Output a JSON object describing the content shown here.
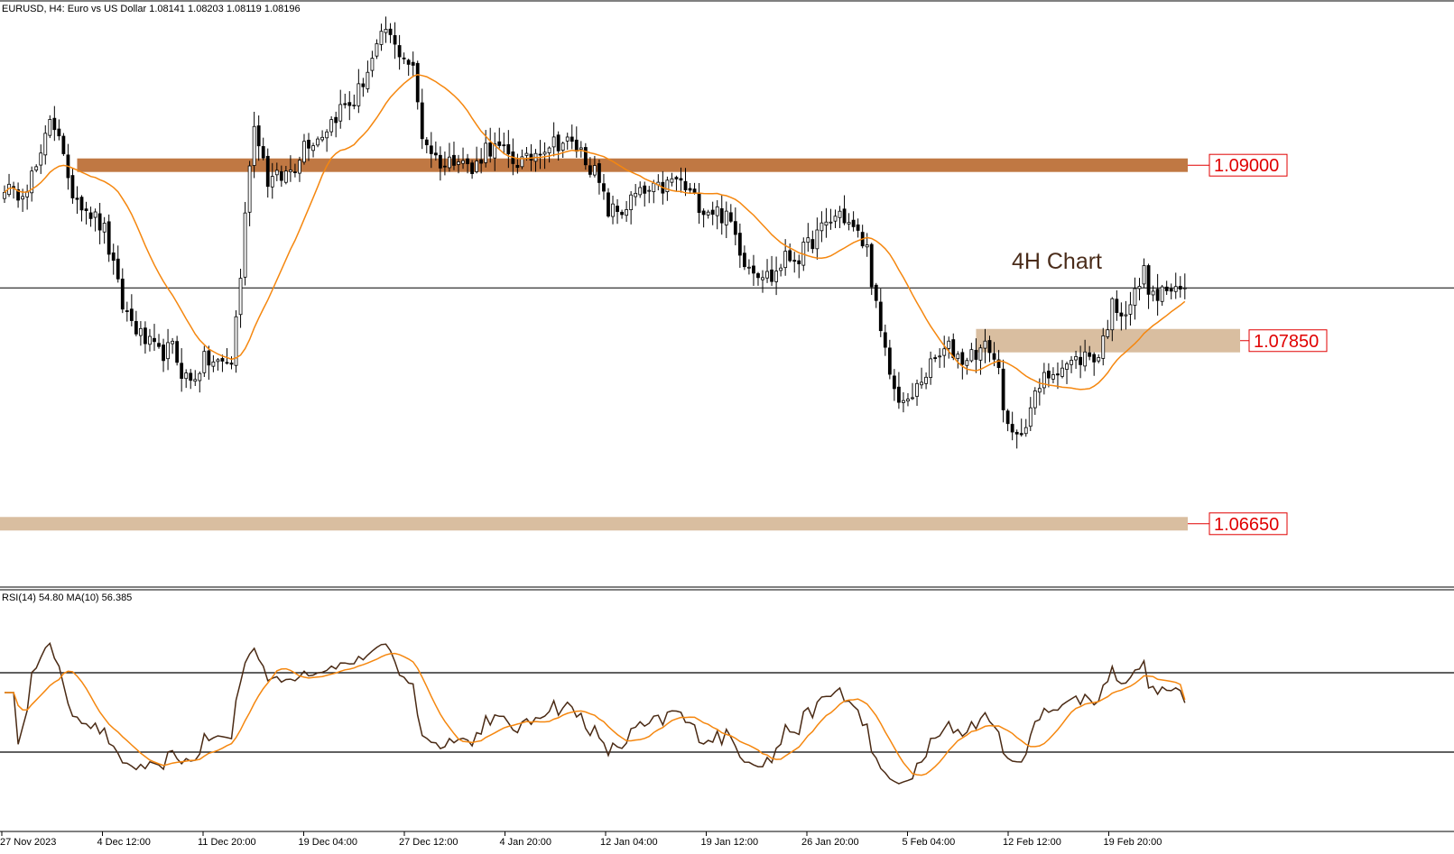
{
  "window": {
    "symbol_line": "EURUSD, H4:  Euro vs US Dollar  1.08141 1.08203 1.08119 1.08196",
    "rsi_line": "RSI(14) 54.80 MA(10) 56.385"
  },
  "annotation": "4H Chart",
  "colors": {
    "background": "#ffffff",
    "candle": "#000000",
    "ma_line": "#f5870f",
    "rsi_line": "#4a2a14",
    "level_dark": "#c07843",
    "level_light": "#d9bea0",
    "label_red": "#e00000"
  },
  "chart_data": [
    {
      "type": "candlestick",
      "symbol": "EURUSD",
      "timeframe": "H4",
      "title": "Euro vs US Dollar",
      "last_ohlc": {
        "open": 1.08141,
        "high": 1.08203,
        "low": 1.08119,
        "close": 1.08196
      },
      "ylim": [
        1.063,
        1.1
      ],
      "x_tick_labels": [
        "27 Nov 2023",
        "4 Dec 12:00",
        "11 Dec 20:00",
        "19 Dec 04:00",
        "27 Dec 12:00",
        "4 Jan 20:00",
        "12 Jan 04:00",
        "19 Jan 12:00",
        "26 Jan 20:00",
        "5 Feb 04:00",
        "12 Feb 12:00",
        "19 Feb 20:00"
      ],
      "price_path": [
        [
          0,
          1.0887
        ],
        [
          2,
          1.088
        ],
        [
          5,
          1.0888
        ],
        [
          8,
          1.0903
        ],
        [
          10,
          1.0932
        ],
        [
          12,
          1.0922
        ],
        [
          14,
          1.0886
        ],
        [
          18,
          1.0873
        ],
        [
          22,
          1.0857
        ],
        [
          26,
          1.0808
        ],
        [
          30,
          1.0788
        ],
        [
          34,
          1.0776
        ],
        [
          37,
          1.078
        ],
        [
          39,
          1.0765
        ],
        [
          41,
          1.0758
        ],
        [
          44,
          1.0772
        ],
        [
          47,
          1.077
        ],
        [
          50,
          1.0771
        ],
        [
          52,
          1.0828
        ],
        [
          54,
          1.0904
        ],
        [
          55,
          1.0925
        ],
        [
          56,
          1.0918
        ],
        [
          58,
          1.089
        ],
        [
          61,
          1.0892
        ],
        [
          64,
          1.09
        ],
        [
          66,
          1.0915
        ],
        [
          69,
          1.0918
        ],
        [
          71,
          1.0925
        ],
        [
          74,
          1.0937
        ],
        [
          77,
          1.0942
        ],
        [
          80,
          1.0962
        ],
        [
          82,
          1.0975
        ],
        [
          84,
          1.0989
        ],
        [
          86,
          1.0977
        ],
        [
          88,
          1.0972
        ],
        [
          90,
          1.0962
        ],
        [
          92,
          1.092
        ],
        [
          95,
          1.0905
        ],
        [
          97,
          1.09
        ],
        [
          100,
          1.0908
        ],
        [
          103,
          1.0895
        ],
        [
          106,
          1.0912
        ],
        [
          109,
          1.091
        ],
        [
          112,
          1.0903
        ],
        [
          115,
          1.0902
        ],
        [
          118,
          1.0912
        ],
        [
          121,
          1.0915
        ],
        [
          124,
          1.0915
        ],
        [
          127,
          1.0909
        ],
        [
          130,
          1.0895
        ],
        [
          133,
          1.087
        ],
        [
          136,
          1.087
        ],
        [
          139,
          1.088
        ],
        [
          142,
          1.0882
        ],
        [
          145,
          1.0885
        ],
        [
          148,
          1.0891
        ],
        [
          151,
          1.0881
        ],
        [
          154,
          1.0872
        ],
        [
          157,
          1.087
        ],
        [
          160,
          1.0862
        ],
        [
          163,
          1.0838
        ],
        [
          166,
          1.0831
        ],
        [
          169,
          1.0826
        ],
        [
          172,
          1.0839
        ],
        [
          175,
          1.084
        ],
        [
          178,
          1.0851
        ],
        [
          181,
          1.0861
        ],
        [
          184,
          1.0869
        ],
        [
          187,
          1.0858
        ],
        [
          190,
          1.0845
        ],
        [
          193,
          1.0788
        ],
        [
          196,
          1.0752
        ],
        [
          199,
          1.0742
        ],
        [
          202,
          1.076
        ],
        [
          205,
          1.0772
        ],
        [
          208,
          1.078
        ],
        [
          211,
          1.0773
        ],
        [
          214,
          1.0778
        ],
        [
          217,
          1.0781
        ],
        [
          219,
          1.0765
        ],
        [
          221,
          1.0725
        ],
        [
          223,
          1.072
        ],
        [
          226,
          1.0741
        ],
        [
          229,
          1.076
        ],
        [
          232,
          1.0768
        ],
        [
          235,
          1.077
        ],
        [
          238,
          1.0775
        ],
        [
          241,
          1.0775
        ],
        [
          244,
          1.0808
        ],
        [
          247,
          1.0805
        ],
        [
          249,
          1.0815
        ],
        [
          251,
          1.083
        ],
        [
          253,
          1.0812
        ],
        [
          256,
          1.0819
        ],
        [
          258,
          1.0815
        ],
        [
          260,
          1.082
        ]
      ],
      "ma_period": 20,
      "levels": [
        {
          "value": 1.09,
          "label": "1.09000",
          "style": "dark-band"
        },
        {
          "value": 1.0785,
          "label": "1.07850",
          "style": "light-zone"
        },
        {
          "value": 1.0665,
          "label": "1.06650",
          "style": "light-band"
        }
      ],
      "current_price": 1.08196,
      "annotation": "4H Chart"
    },
    {
      "type": "line",
      "indicator": "RSI",
      "period": 14,
      "current_value": 54.8,
      "ma_period": 10,
      "ma_value": 56.385,
      "levels": [
        30,
        70
      ]
    }
  ]
}
